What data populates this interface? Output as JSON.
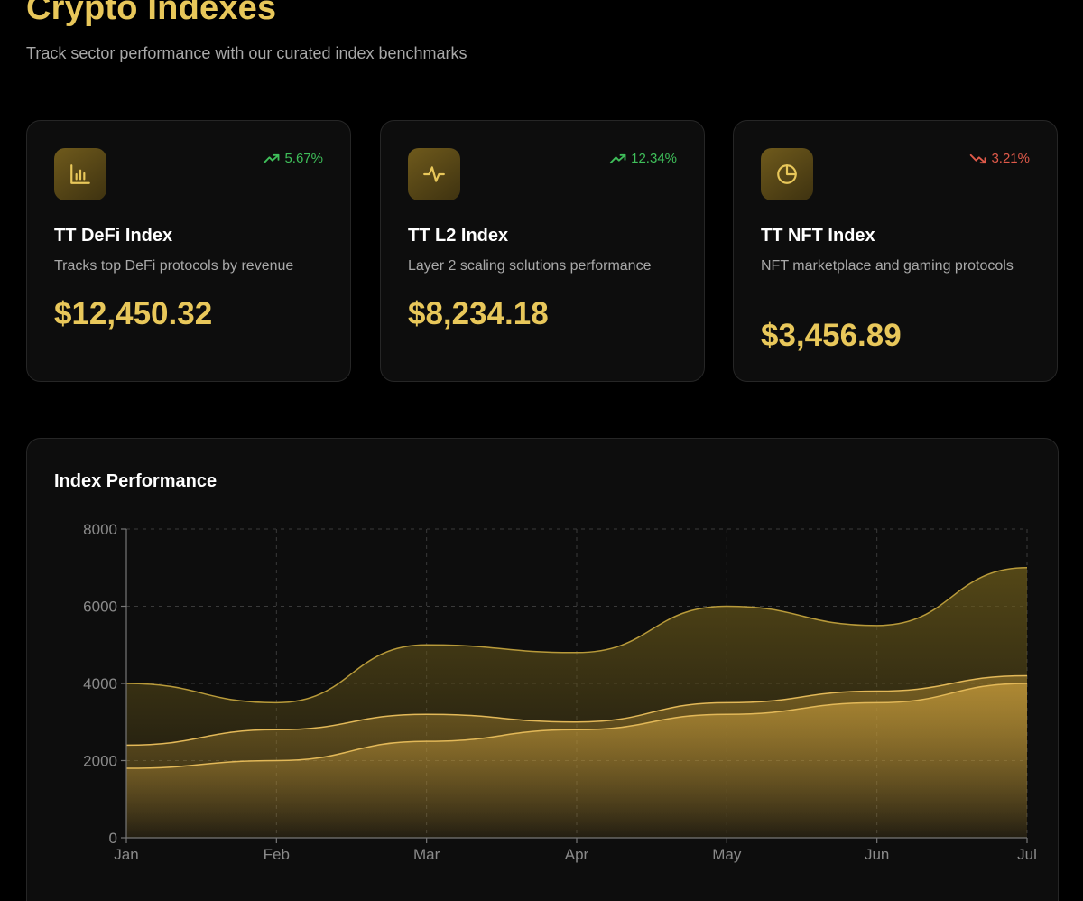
{
  "header": {
    "title": "Crypto Indexes",
    "subtitle": "Track sector performance with our curated index benchmarks"
  },
  "cards": [
    {
      "name": "TT DeFi Index",
      "description": "Tracks top DeFi protocols by revenue",
      "value": "$12,450.32",
      "change": "5.67%",
      "direction": "up",
      "icon": "bar-chart-icon"
    },
    {
      "name": "TT L2 Index",
      "description": "Layer 2 scaling solutions performance",
      "value": "$8,234.18",
      "change": "12.34%",
      "direction": "up",
      "icon": "pulse-icon"
    },
    {
      "name": "TT NFT Index",
      "description": "NFT marketplace and gaming protocols",
      "value": "$3,456.89",
      "change": "3.21%",
      "direction": "down",
      "icon": "pie-chart-icon"
    }
  ],
  "colors": {
    "accent": "#e8c75a",
    "positive": "#3fbf5a",
    "negative": "#e05a4a",
    "card_bg": "#0d0d0d",
    "page_bg": "#000000"
  },
  "chart_title": "Index Performance",
  "chart_data": {
    "type": "area",
    "title": "Index Performance",
    "categories": [
      "Jan",
      "Feb",
      "Mar",
      "Apr",
      "May",
      "Jun",
      "Jul"
    ],
    "ylim": [
      0,
      8000
    ],
    "yticks": [
      0,
      2000,
      4000,
      6000,
      8000
    ],
    "grid": true,
    "legend": "none",
    "series": [
      {
        "values": [
          4000,
          3500,
          5000,
          4800,
          6000,
          5500,
          7000
        ],
        "color": "#6b5a1a"
      },
      {
        "values": [
          2400,
          2800,
          3200,
          3000,
          3500,
          3800,
          4200
        ],
        "color": "#a8842e"
      },
      {
        "values": [
          1800,
          2000,
          2500,
          2800,
          3200,
          3500,
          4000
        ],
        "color": "#d4a640"
      }
    ]
  }
}
